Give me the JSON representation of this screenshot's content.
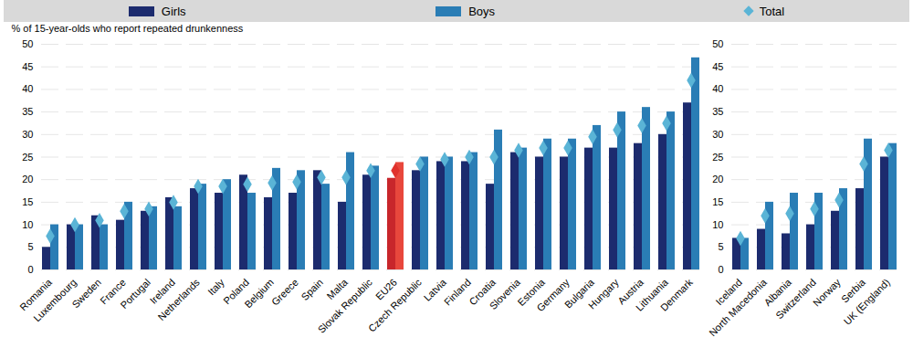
{
  "chart_data": {
    "type": "bar",
    "y_label": "% of 15-year-olds who report repeated drunkenness",
    "categories": [
      "Romania",
      "Luxembourg",
      "Sweden",
      "France",
      "Portugal",
      "Ireland",
      "Netherlands",
      "Italy",
      "Poland",
      "Belgium",
      "Greece",
      "Spain",
      "Malta",
      "Slovak Republic",
      "EU26",
      "Czech Republic",
      "Latvia",
      "Finland",
      "Croatia",
      "Slovenia",
      "Estonia",
      "Germany",
      "Bulgaria",
      "Hungary",
      "Austria",
      "Lithuania",
      "Denmark",
      null,
      "Iceland",
      "North Macedonia",
      "Albania",
      "Switzerland",
      "Norway",
      "Serbia",
      "UK (England)"
    ],
    "series": [
      {
        "name": "Girls",
        "type": "bar",
        "color": "#1c2b6e",
        "values": [
          5,
          10,
          12,
          11,
          13,
          16,
          18,
          17,
          21,
          16,
          17,
          22,
          15,
          21,
          20.3,
          22,
          24,
          24,
          19,
          26,
          25,
          25,
          27,
          27,
          28,
          30,
          37,
          null,
          7,
          9,
          8,
          10,
          13,
          18,
          25
        ],
        "colors": [
          "#1c2b6e",
          "#1c2b6e",
          "#1c2b6e",
          "#1c2b6e",
          "#1c2b6e",
          "#1c2b6e",
          "#1c2b6e",
          "#1c2b6e",
          "#1c2b6e",
          "#1c2b6e",
          "#1c2b6e",
          "#1c2b6e",
          "#1c2b6e",
          "#1c2b6e",
          "#c8262b",
          "#1c2b6e",
          "#1c2b6e",
          "#1c2b6e",
          "#1c2b6e",
          "#1c2b6e",
          "#1c2b6e",
          "#1c2b6e",
          "#1c2b6e",
          "#1c2b6e",
          "#1c2b6e",
          "#1c2b6e",
          "#1c2b6e",
          "#1c2b6e",
          "#1c2b6e",
          "#1c2b6e",
          "#1c2b6e",
          "#1c2b6e",
          "#1c2b6e",
          "#1c2b6e",
          "#1c2b6e"
        ]
      },
      {
        "name": "Boys",
        "type": "bar",
        "color": "#2a7db5",
        "values": [
          10,
          10,
          10,
          15,
          14,
          14,
          19,
          20,
          17,
          22.5,
          22,
          19,
          26,
          23,
          23.8,
          25,
          25,
          26,
          31,
          27,
          29,
          29,
          32,
          35,
          36,
          35,
          47,
          null,
          7,
          15,
          17,
          17,
          18,
          29,
          28
        ],
        "colors": [
          "#2a7db5",
          "#2a7db5",
          "#2a7db5",
          "#2a7db5",
          "#2a7db5",
          "#2a7db5",
          "#2a7db5",
          "#2a7db5",
          "#2a7db5",
          "#2a7db5",
          "#2a7db5",
          "#2a7db5",
          "#2a7db5",
          "#2a7db5",
          "#e8473c",
          "#2a7db5",
          "#2a7db5",
          "#2a7db5",
          "#2a7db5",
          "#2a7db5",
          "#2a7db5",
          "#2a7db5",
          "#2a7db5",
          "#2a7db5",
          "#2a7db5",
          "#2a7db5",
          "#2a7db5",
          "#2a7db5",
          "#2a7db5",
          "#2a7db5",
          "#2a7db5",
          "#2a7db5",
          "#2a7db5",
          "#2a7db5",
          "#2a7db5"
        ]
      },
      {
        "name": "Total",
        "type": "scatter",
        "marker": "diamond",
        "color": "#5ab4d6",
        "values": [
          7.5,
          10,
          11,
          13,
          13.5,
          15,
          18.5,
          18.5,
          19,
          19.3,
          19.5,
          20.5,
          20.5,
          22,
          22,
          23.5,
          24.5,
          25,
          25,
          26.5,
          27,
          27,
          29.5,
          31,
          32,
          32.5,
          42,
          null,
          7,
          12,
          12.5,
          13.5,
          15.5,
          23.5,
          26.5
        ],
        "colors": [
          "#5ab4d6",
          "#5ab4d6",
          "#5ab4d6",
          "#5ab4d6",
          "#5ab4d6",
          "#5ab4d6",
          "#5ab4d6",
          "#5ab4d6",
          "#5ab4d6",
          "#5ab4d6",
          "#5ab4d6",
          "#5ab4d6",
          "#5ab4d6",
          "#5ab4d6",
          "#e0312c",
          "#5ab4d6",
          "#5ab4d6",
          "#5ab4d6",
          "#5ab4d6",
          "#5ab4d6",
          "#5ab4d6",
          "#5ab4d6",
          "#5ab4d6",
          "#5ab4d6",
          "#5ab4d6",
          "#5ab4d6",
          "#5ab4d6",
          "#5ab4d6",
          "#5ab4d6",
          "#5ab4d6",
          "#5ab4d6",
          "#5ab4d6",
          "#5ab4d6",
          "#5ab4d6",
          "#5ab4d6"
        ]
      }
    ],
    "ylim": [
      0,
      50
    ],
    "yticks": [
      0,
      5,
      10,
      15,
      20,
      25,
      30,
      35,
      40,
      45,
      50
    ],
    "grid": true,
    "legend": "top"
  }
}
